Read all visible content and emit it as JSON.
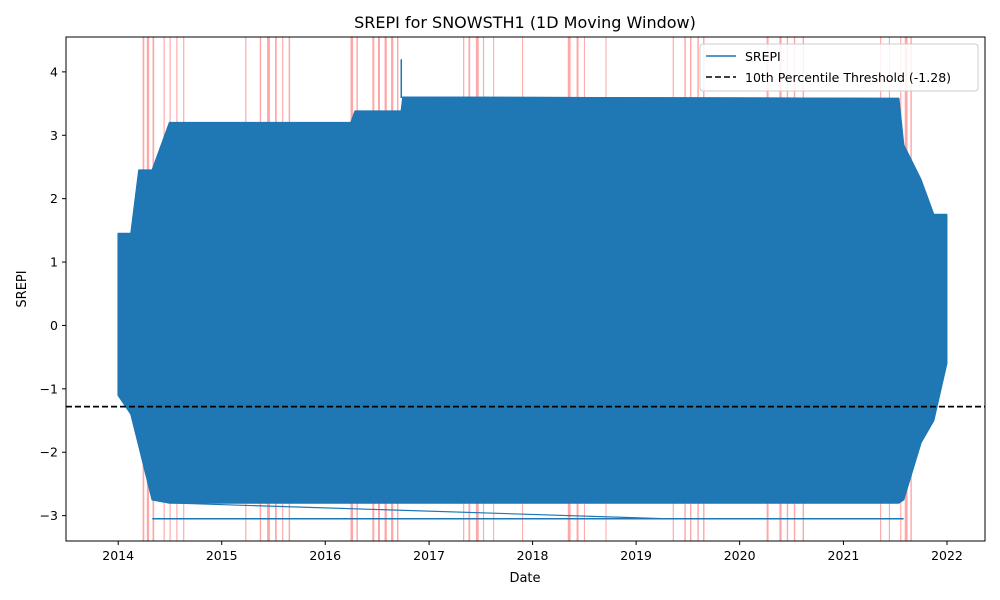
{
  "chart_data": {
    "type": "line",
    "title": "SREPI for SNOWSTH1 (1D Moving Window)",
    "xlabel": "Date",
    "ylabel": "SREPI",
    "xlim": [
      "2013-07-01",
      "2022-05-15"
    ],
    "ylim": [
      -3.4,
      4.55
    ],
    "x_ticks": [
      "2014",
      "2015",
      "2016",
      "2017",
      "2018",
      "2019",
      "2020",
      "2021",
      "2022"
    ],
    "y_ticks": [
      -3,
      -2,
      -1,
      0,
      1,
      2,
      3,
      4
    ],
    "y_tick_labels": [
      "−3",
      "−2",
      "−1",
      "0",
      "1",
      "2",
      "3",
      "4"
    ],
    "grid": false,
    "legend_position": "top-right",
    "colors": {
      "series": "#1f77b4",
      "threshold": "#000000",
      "drought_spans": "#ff0000"
    },
    "series": [
      {
        "name": "SREPI",
        "envelope": [
          {
            "x": "2014-01-01",
            "min": -1.1,
            "max": 1.45
          },
          {
            "x": "2014-02-15",
            "min": -1.4,
            "max": 1.45
          },
          {
            "x": "2014-03-15",
            "min": -1.9,
            "max": 2.45
          },
          {
            "x": "2014-05-01",
            "min": -2.75,
            "max": 2.45
          },
          {
            "x": "2014-07-01",
            "min": -2.8,
            "max": 3.2
          },
          {
            "x": "2016-04-01",
            "min": -2.8,
            "max": 3.2
          },
          {
            "x": "2016-04-15",
            "min": -2.8,
            "max": 3.38
          },
          {
            "x": "2016-09-25",
            "min": -2.8,
            "max": 3.38
          },
          {
            "x": "2016-10-01",
            "min": -2.8,
            "max": 3.6
          },
          {
            "x": "2021-07-15",
            "min": -2.8,
            "max": 3.58
          },
          {
            "x": "2021-08-01",
            "min": -2.75,
            "max": 2.85
          },
          {
            "x": "2021-10-01",
            "min": -1.85,
            "max": 2.3
          },
          {
            "x": "2021-11-15",
            "min": -1.5,
            "max": 1.75
          },
          {
            "x": "2021-12-31",
            "min": -0.6,
            "max": 1.75
          }
        ],
        "peak": {
          "x": "2016-09-25",
          "y": 4.2
        },
        "trough": {
          "x": "2014-05-01",
          "y": -3.05
        }
      },
      {
        "name": "10th Percentile Threshold (-1.28)",
        "value": -1.28,
        "style": "dashed"
      }
    ],
    "drought_spans": [
      [
        "2014-03-28",
        "2014-04-03"
      ],
      [
        "2014-04-12",
        "2014-04-20"
      ],
      [
        "2014-05-02",
        "2014-05-08"
      ],
      [
        "2014-06-10",
        "2014-06-14"
      ],
      [
        "2014-07-01",
        "2014-07-05"
      ],
      [
        "2014-07-25",
        "2014-07-29"
      ],
      [
        "2014-08-18",
        "2014-08-22"
      ],
      [
        "2015-03-25",
        "2015-03-29"
      ],
      [
        "2015-05-15",
        "2015-05-20"
      ],
      [
        "2015-06-10",
        "2015-06-20"
      ],
      [
        "2015-07-08",
        "2015-07-14"
      ],
      [
        "2015-08-02",
        "2015-08-06"
      ],
      [
        "2015-08-25",
        "2015-08-30"
      ],
      [
        "2016-03-30",
        "2016-04-08"
      ],
      [
        "2016-04-20",
        "2016-04-25"
      ],
      [
        "2016-06-15",
        "2016-06-22"
      ],
      [
        "2016-07-05",
        "2016-07-12"
      ],
      [
        "2016-07-28",
        "2016-08-05"
      ],
      [
        "2016-08-20",
        "2016-08-28"
      ],
      [
        "2016-09-10",
        "2016-09-15"
      ],
      [
        "2017-05-01",
        "2017-05-05"
      ],
      [
        "2017-05-20",
        "2017-05-26"
      ],
      [
        "2017-06-15",
        "2017-06-25"
      ],
      [
        "2017-07-10",
        "2017-07-14"
      ],
      [
        "2017-08-15",
        "2017-08-18"
      ],
      [
        "2017-11-25",
        "2017-11-28"
      ],
      [
        "2018-05-05",
        "2018-05-15"
      ],
      [
        "2018-06-05",
        "2018-06-12"
      ],
      [
        "2018-07-01",
        "2018-07-04"
      ],
      [
        "2018-09-15",
        "2018-09-18"
      ],
      [
        "2019-05-10",
        "2019-05-14"
      ],
      [
        "2019-06-20",
        "2019-06-25"
      ],
      [
        "2019-07-10",
        "2019-07-15"
      ],
      [
        "2019-08-05",
        "2019-08-10"
      ],
      [
        "2019-08-25",
        "2019-08-30"
      ],
      [
        "2020-04-05",
        "2020-04-12"
      ],
      [
        "2020-05-20",
        "2020-05-28"
      ],
      [
        "2020-06-15",
        "2020-06-20"
      ],
      [
        "2020-07-10",
        "2020-07-15"
      ],
      [
        "2020-08-10",
        "2020-08-15"
      ],
      [
        "2021-05-10",
        "2021-05-14"
      ],
      [
        "2021-06-10",
        "2021-06-14"
      ],
      [
        "2021-07-20",
        "2021-07-24"
      ],
      [
        "2021-08-05",
        "2021-08-15"
      ],
      [
        "2021-08-25",
        "2021-08-30"
      ]
    ]
  }
}
